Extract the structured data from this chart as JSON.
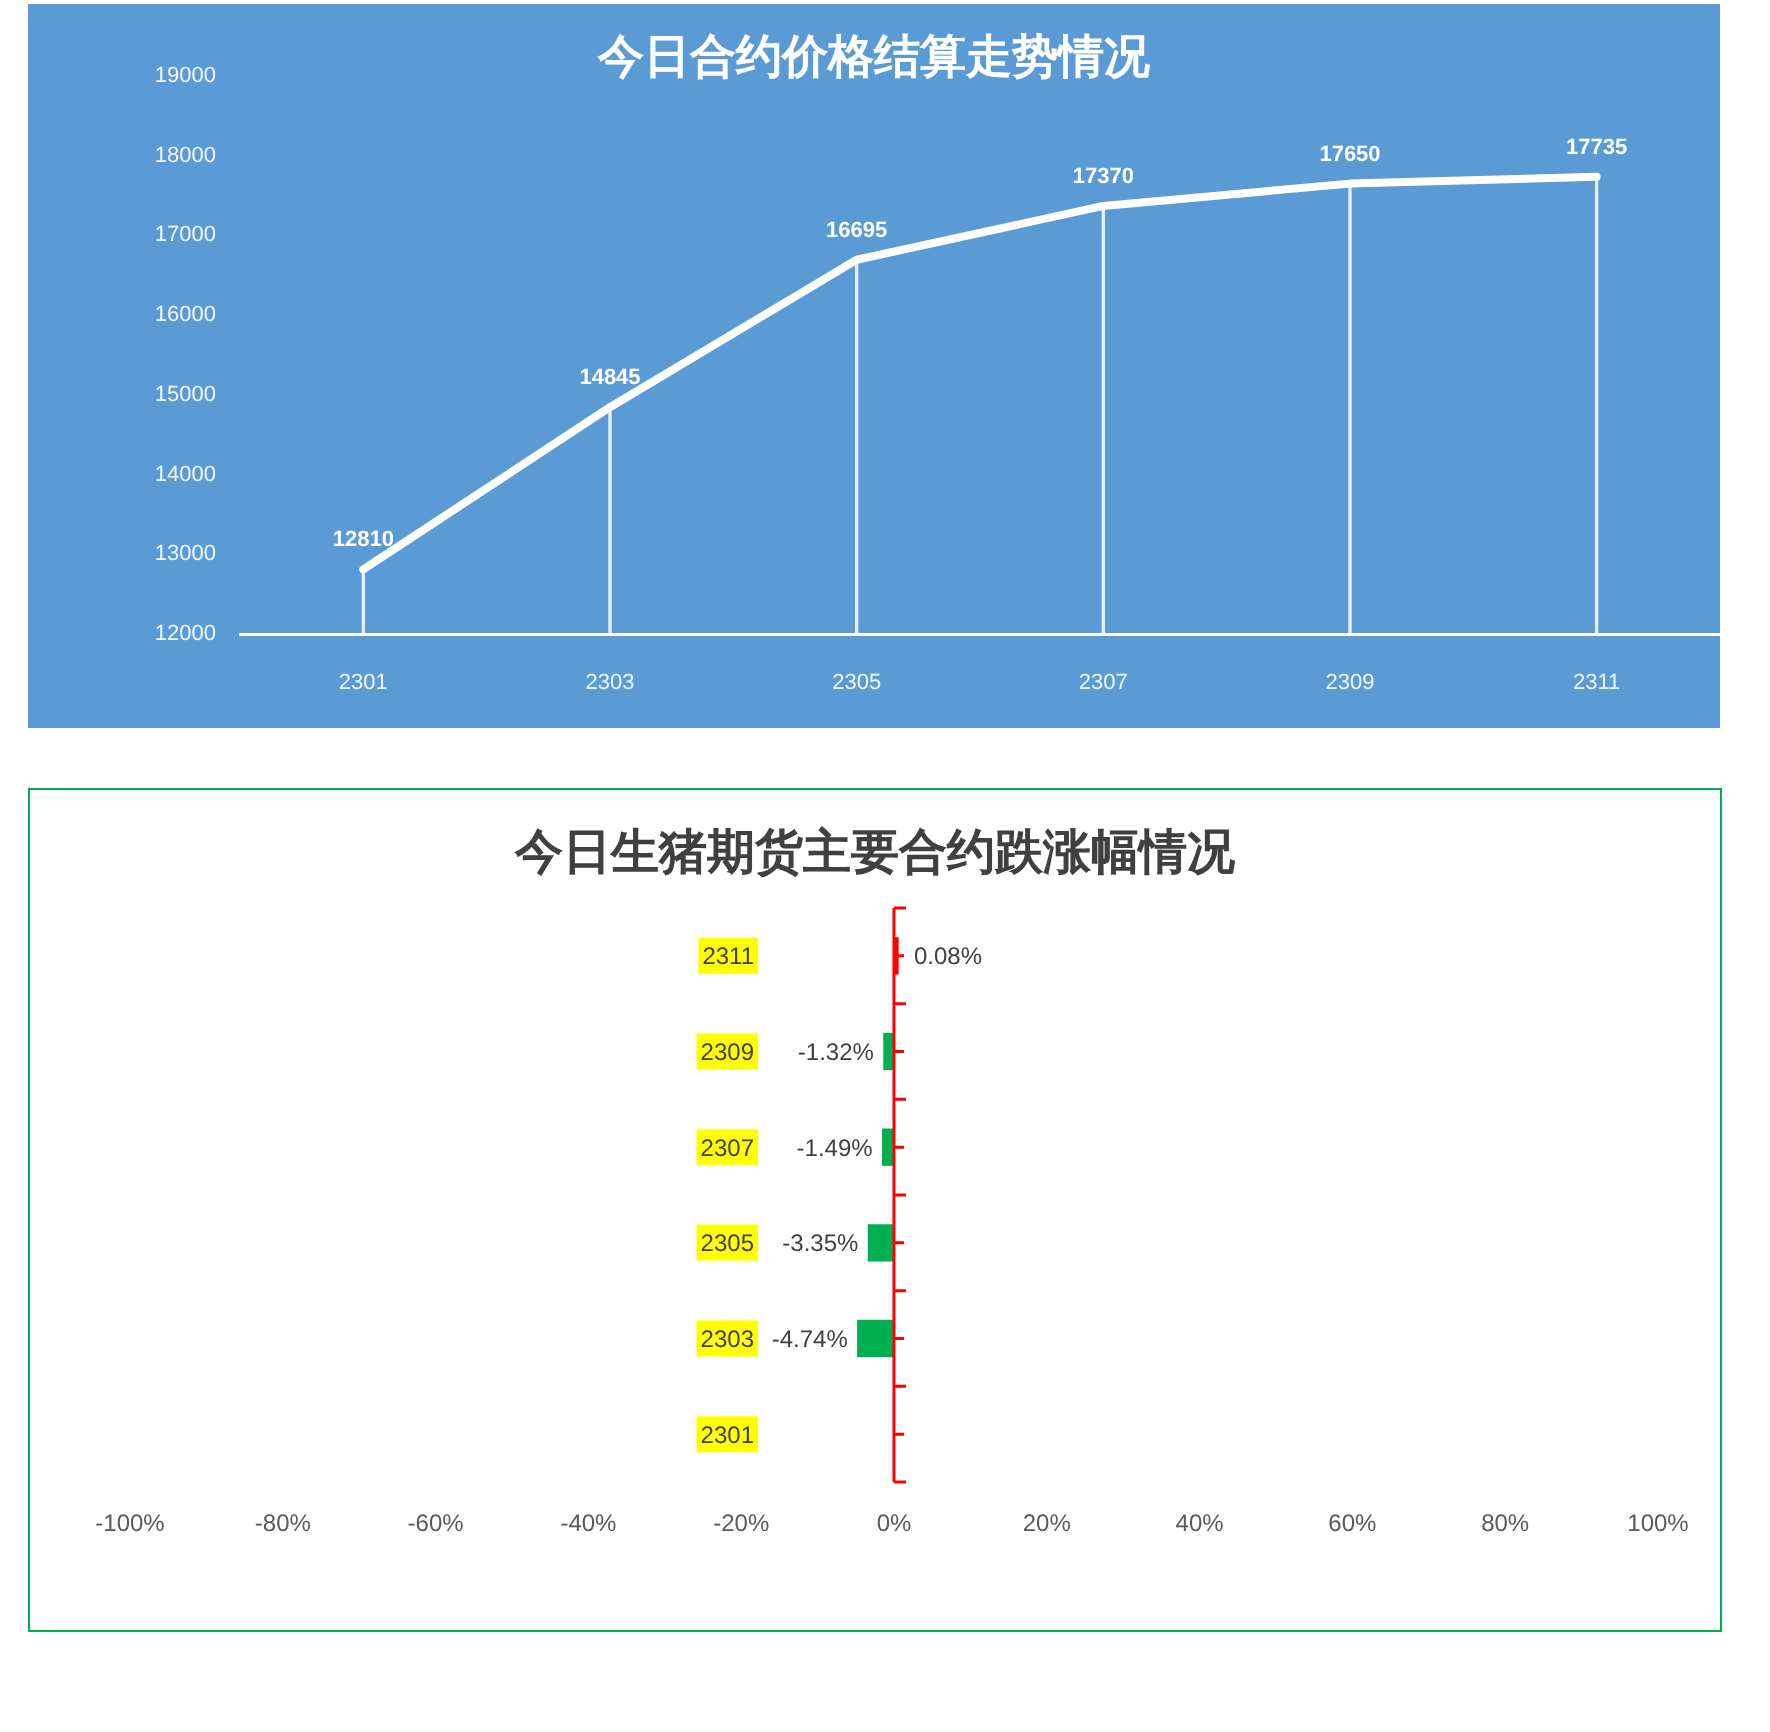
{
  "chart_data": [
    {
      "type": "line",
      "title": "今日合约价格结算走势情况",
      "categories": [
        "2301",
        "2303",
        "2305",
        "2307",
        "2309",
        "2311"
      ],
      "series": [
        {
          "type": "bar",
          "color": "#e8f0f9",
          "values": [
            12810,
            14845,
            16695,
            17370,
            17650,
            17735
          ]
        },
        {
          "type": "line",
          "color": "#ffffff",
          "values": [
            12810,
            14845,
            16695,
            17370,
            17650,
            17735
          ],
          "value_labels": [
            "12810",
            "14845",
            "16695",
            "17370",
            "17650",
            "17735"
          ]
        }
      ],
      "ylim": [
        12000,
        19000
      ],
      "yticks": [
        12000,
        13000,
        14000,
        15000,
        16000,
        17000,
        18000,
        19000
      ],
      "marker": "none"
    },
    {
      "type": "bar",
      "orientation": "horizontal",
      "title": "今日生猪期货主要合约跌涨幅情况",
      "categories": [
        "2311",
        "2309",
        "2307",
        "2305",
        "2303",
        "2301"
      ],
      "values": [
        0.08,
        -1.32,
        -1.49,
        -3.35,
        -4.74,
        null
      ],
      "colors": [
        "#ff0000",
        "#00b050",
        "#00b050",
        "#00b050",
        "#00b050",
        null
      ],
      "value_labels": [
        "0.08%",
        "-1.32%",
        "-1.49%",
        "-3.35%",
        "-4.74%",
        null
      ],
      "xlim": [
        -100,
        100
      ],
      "xticks": [
        {
          "value": -100,
          "label": "-100%"
        },
        {
          "value": -80,
          "label": "-80%"
        },
        {
          "value": -60,
          "label": "-60%"
        },
        {
          "value": -40,
          "label": "-40%"
        },
        {
          "value": -20,
          "label": "-20%"
        },
        {
          "value": 0,
          "label": "0%"
        },
        {
          "value": 20,
          "label": "20%"
        },
        {
          "value": 40,
          "label": "40%"
        },
        {
          "value": 60,
          "label": "60%"
        },
        {
          "value": 80,
          "label": "80%"
        },
        {
          "value": 100,
          "label": "100%"
        }
      ],
      "ref_lines": [
        {
          "axis": "x",
          "value": 0,
          "color": "#ff0000"
        }
      ]
    }
  ]
}
